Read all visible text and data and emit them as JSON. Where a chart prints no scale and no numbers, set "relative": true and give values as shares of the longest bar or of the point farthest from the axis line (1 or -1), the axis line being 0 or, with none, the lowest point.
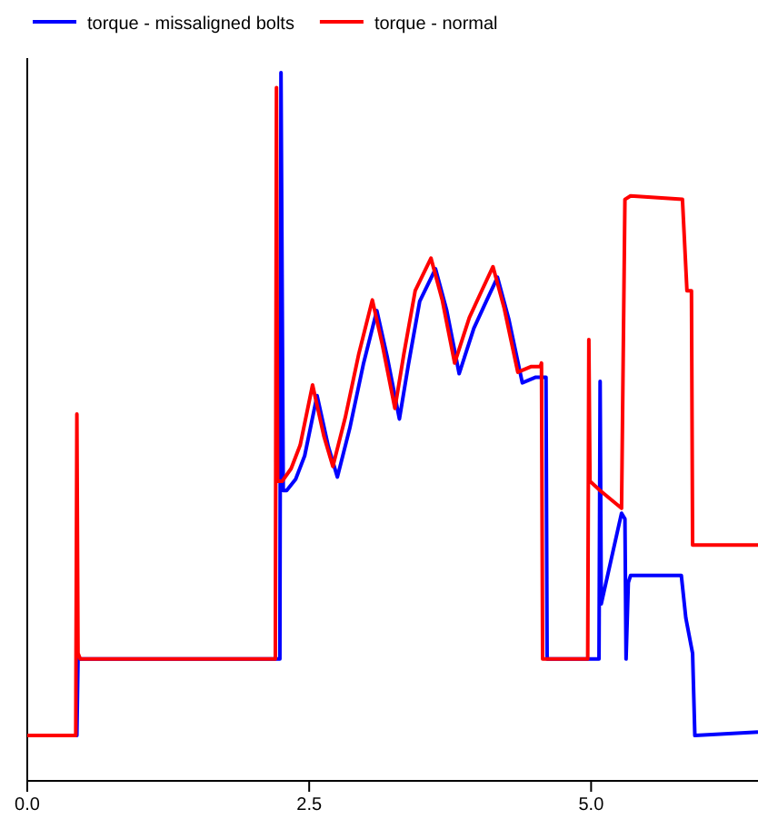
{
  "chart_data": {
    "type": "line",
    "relative": true,
    "legend": "top left",
    "grid": false,
    "xlim": [
      0,
      6.48
    ],
    "xticks": [
      {
        "value": 0,
        "label": "0.0"
      },
      {
        "value": 2.5,
        "label": "2.5"
      },
      {
        "value": 5,
        "label": "5.0"
      }
    ],
    "tick_labels": "x",
    "series": [
      {
        "name": "torque - missaligned bolts",
        "color": "#0000ff",
        "x": [
          0,
          0.44,
          0.45,
          2.24,
          2.25,
          2.27,
          2.3,
          2.38,
          2.46,
          2.57,
          2.67,
          2.75,
          2.86,
          2.98,
          3.1,
          3.19,
          3.3,
          3.38,
          3.48,
          3.62,
          3.72,
          3.83,
          3.96,
          4.07,
          4.17,
          4.27,
          4.39,
          4.51,
          4.6,
          4.61,
          5.07,
          5.08,
          5.09,
          5.27,
          5.3,
          5.31,
          5.33,
          5.35,
          5.8,
          5.84,
          5.9,
          5.92,
          6.48
        ],
        "values": [
          0.064,
          0.064,
          0.172,
          0.172,
          1.0,
          0.41,
          0.41,
          0.426,
          0.459,
          0.544,
          0.472,
          0.429,
          0.498,
          0.588,
          0.664,
          0.6,
          0.511,
          0.588,
          0.677,
          0.723,
          0.664,
          0.575,
          0.639,
          0.677,
          0.711,
          0.652,
          0.562,
          0.57,
          0.57,
          0.172,
          0.172,
          0.564,
          0.25,
          0.378,
          0.37,
          0.172,
          0.28,
          0.29,
          0.29,
          0.23,
          0.18,
          0.064,
          0.069
        ]
      },
      {
        "name": "torque - normal",
        "color": "#ff0000",
        "x": [
          0,
          0.43,
          0.44,
          0.45,
          0.47,
          2.2,
          2.21,
          2.22,
          2.26,
          2.34,
          2.42,
          2.53,
          2.63,
          2.71,
          2.82,
          2.94,
          3.06,
          3.15,
          3.26,
          3.34,
          3.44,
          3.58,
          3.68,
          3.79,
          3.92,
          4.03,
          4.13,
          4.23,
          4.35,
          4.47,
          4.55,
          4.56,
          4.57,
          4.97,
          4.98,
          4.99,
          5.08,
          5.27,
          5.3,
          5.35,
          5.81,
          5.85,
          5.89,
          5.9,
          6.48
        ],
        "values": [
          0.064,
          0.064,
          0.518,
          0.18,
          0.172,
          0.172,
          0.979,
          0.423,
          0.423,
          0.441,
          0.474,
          0.559,
          0.487,
          0.444,
          0.513,
          0.603,
          0.679,
          0.615,
          0.526,
          0.603,
          0.692,
          0.738,
          0.679,
          0.59,
          0.654,
          0.692,
          0.726,
          0.667,
          0.577,
          0.585,
          0.585,
          0.59,
          0.172,
          0.172,
          0.623,
          0.423,
          0.41,
          0.385,
          0.821,
          0.826,
          0.821,
          0.692,
          0.692,
          0.333,
          0.333
        ]
      }
    ]
  }
}
